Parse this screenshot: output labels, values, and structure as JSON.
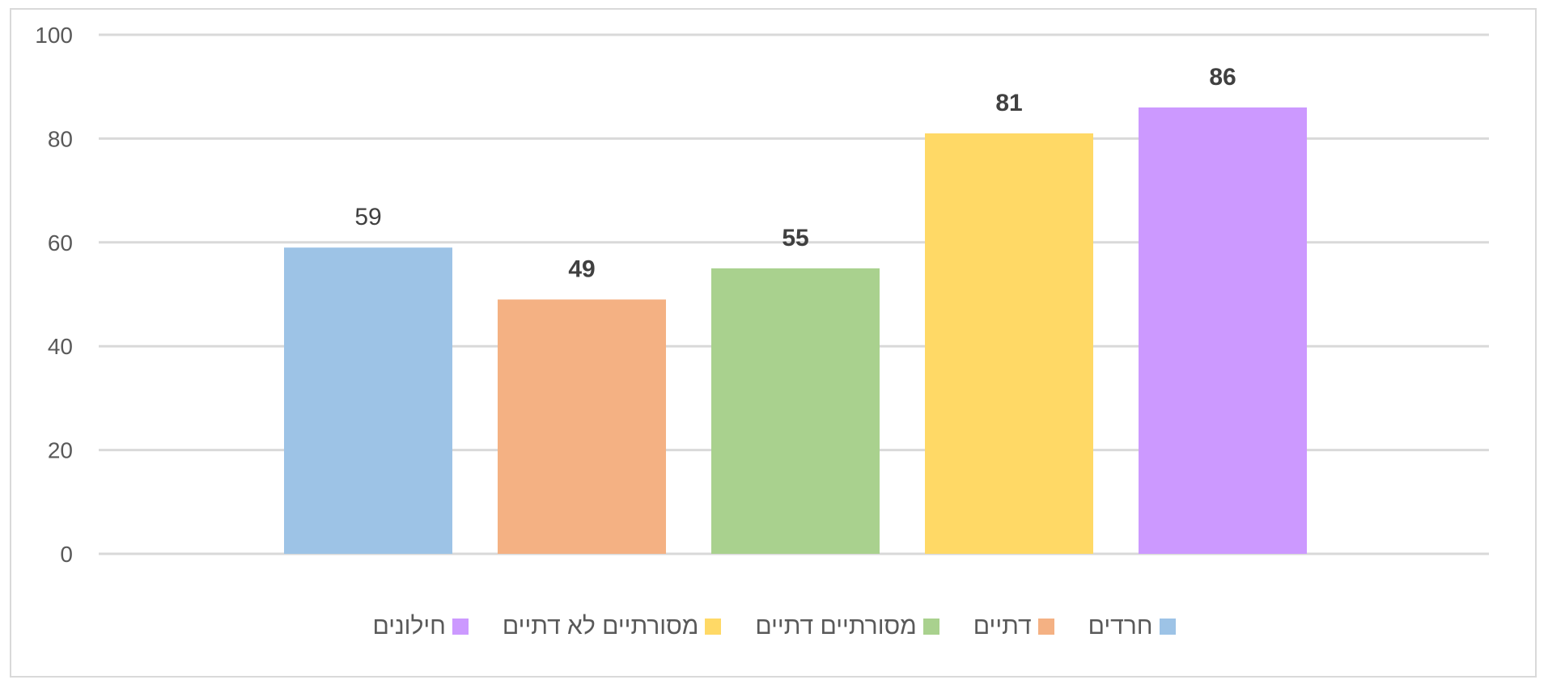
{
  "chart_data": {
    "type": "bar",
    "categories": [
      "חרדים",
      "דתיים",
      "מסורתיים דתיים",
      "מסורתיים לא דתיים",
      "חילונים"
    ],
    "values": [
      59,
      49,
      55,
      81,
      86
    ],
    "bold_labels": [
      false,
      true,
      true,
      true,
      true
    ],
    "colors": [
      "#9dc3e6",
      "#f4b183",
      "#a9d18e",
      "#ffd966",
      "#cc99ff"
    ],
    "yticks": [
      0,
      20,
      40,
      60,
      80,
      100
    ],
    "ylim": [
      0,
      100
    ],
    "grid": true,
    "legend_position": "bottom",
    "title": "",
    "xlabel": "",
    "ylabel": ""
  }
}
